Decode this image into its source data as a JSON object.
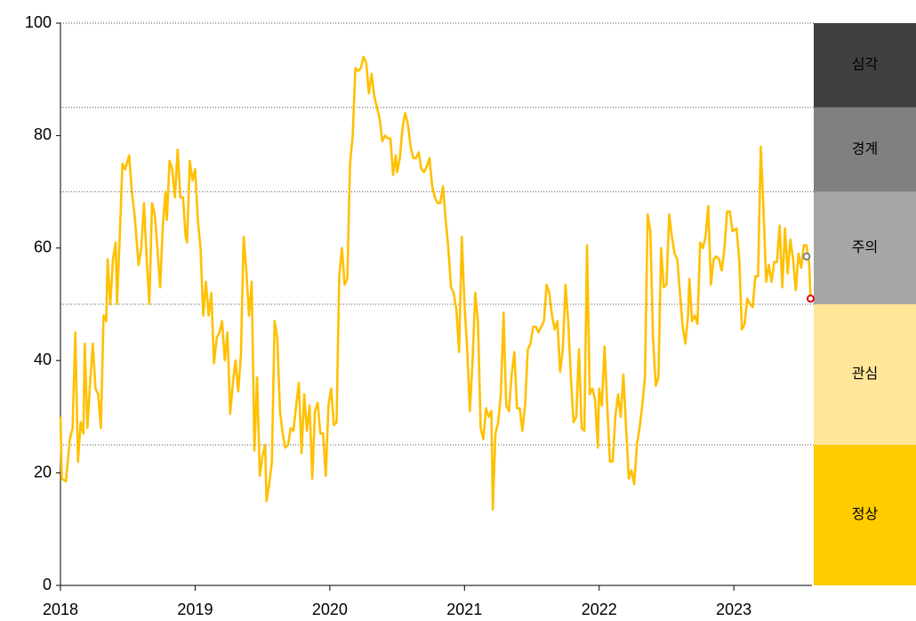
{
  "chart_data": {
    "type": "line",
    "x": [
      2018.0,
      2018.01,
      2018.04,
      2018.07,
      2018.09,
      2018.11,
      2018.13,
      2018.15,
      2018.17,
      2018.18,
      2018.2,
      2018.22,
      2018.24,
      2018.26,
      2018.28,
      2018.3,
      2018.32,
      2018.34,
      2018.35,
      2018.37,
      2018.39,
      2018.41,
      2018.42,
      2018.44,
      2018.46,
      2018.48,
      2018.51,
      2018.53,
      2018.55,
      2018.57,
      2018.58,
      2018.6,
      2018.62,
      2018.64,
      2018.66,
      2018.68,
      2018.7,
      2018.72,
      2018.74,
      2018.76,
      2018.78,
      2018.79,
      2018.81,
      2018.83,
      2018.85,
      2018.87,
      2018.89,
      2018.91,
      2018.93,
      2018.94,
      2018.96,
      2018.98,
      2019.0,
      2019.02,
      2019.04,
      2019.06,
      2019.08,
      2019.1,
      2019.12,
      2019.14,
      2019.16,
      2019.18,
      2019.2,
      2019.22,
      2019.24,
      2019.26,
      2019.28,
      2019.3,
      2019.32,
      2019.34,
      2019.36,
      2019.38,
      2019.4,
      2019.42,
      2019.44,
      2019.46,
      2019.48,
      2019.5,
      2019.52,
      2019.53,
      2019.55,
      2019.57,
      2019.59,
      2019.61,
      2019.63,
      2019.65,
      2019.67,
      2019.69,
      2019.71,
      2019.73,
      2019.75,
      2019.77,
      2019.79,
      2019.81,
      2019.83,
      2019.85,
      2019.87,
      2019.89,
      2019.91,
      2019.93,
      2019.95,
      2019.97,
      2019.99,
      2020.01,
      2020.03,
      2020.05,
      2020.07,
      2020.09,
      2020.11,
      2020.13,
      2020.15,
      2020.17,
      2020.19,
      2020.21,
      2020.23,
      2020.25,
      2020.27,
      2020.29,
      2020.31,
      2020.33,
      2020.35,
      2020.37,
      2020.39,
      2020.41,
      2020.43,
      2020.45,
      2020.47,
      2020.49,
      2020.5,
      2020.52,
      2020.54,
      2020.56,
      2020.58,
      2020.6,
      2020.62,
      2020.64,
      2020.66,
      2020.68,
      2020.7,
      2020.72,
      2020.74,
      2020.76,
      2020.78,
      2020.8,
      2020.82,
      2020.84,
      2020.86,
      2020.88,
      2020.9,
      2020.92,
      2020.94,
      2020.96,
      2020.98,
      2021.0,
      2021.02,
      2021.04,
      2021.06,
      2021.08,
      2021.1,
      2021.12,
      2021.14,
      2021.16,
      2021.18,
      2021.2,
      2021.21,
      2021.23,
      2021.25,
      2021.27,
      2021.29,
      2021.31,
      2021.33,
      2021.35,
      2021.37,
      2021.39,
      2021.41,
      2021.43,
      2021.45,
      2021.47,
      2021.49,
      2021.51,
      2021.53,
      2021.55,
      2021.57,
      2021.59,
      2021.61,
      2021.63,
      2021.65,
      2021.67,
      2021.69,
      2021.71,
      2021.73,
      2021.75,
      2021.77,
      2021.79,
      2021.81,
      2021.83,
      2021.85,
      2021.87,
      2021.89,
      2021.91,
      2021.93,
      2021.95,
      2021.97,
      2021.99,
      2022.0,
      2022.02,
      2022.04,
      2022.06,
      2022.08,
      2022.1,
      2022.12,
      2022.14,
      2022.16,
      2022.18,
      2022.2,
      2022.22,
      2022.24,
      2022.26,
      2022.28,
      2022.3,
      2022.32,
      2022.34,
      2022.36,
      2022.38,
      2022.4,
      2022.42,
      2022.44,
      2022.46,
      2022.48,
      2022.5,
      2022.52,
      2022.54,
      2022.56,
      2022.58,
      2022.6,
      2022.62,
      2022.64,
      2022.66,
      2022.67,
      2022.69,
      2022.71,
      2022.73,
      2022.75,
      2022.77,
      2022.79,
      2022.81,
      2022.83,
      2022.85,
      2022.87,
      2022.89,
      2022.91,
      2022.93,
      2022.95,
      2022.97,
      2022.99,
      2023.02,
      2023.04,
      2023.06,
      2023.08,
      2023.1,
      2023.12,
      2023.14,
      2023.16,
      2023.18,
      2023.2,
      2023.22,
      2023.24,
      2023.26,
      2023.28,
      2023.3,
      2023.32,
      2023.34,
      2023.36,
      2023.38,
      2023.4,
      2023.42,
      2023.44,
      2023.46,
      2023.48,
      2023.5,
      2023.52,
      2023.54,
      2023.56,
      2023.57
    ],
    "series": [
      {
        "color": "#ffc000",
        "values": [
          30,
          19,
          18.5,
          26,
          28,
          45,
          22,
          29,
          27,
          43,
          28,
          36,
          43,
          35,
          34,
          28,
          48,
          47,
          58,
          50,
          58,
          61,
          50,
          62,
          75,
          74,
          76.5,
          70,
          66,
          60,
          57,
          60,
          68,
          58,
          50,
          68,
          66,
          60,
          53,
          64,
          70,
          65,
          75.5,
          74,
          69,
          77.5,
          69,
          69,
          62,
          61,
          75.5,
          72,
          74,
          65,
          60,
          48,
          54,
          48,
          52,
          39.5,
          44,
          45,
          47,
          40,
          45,
          30.5,
          36,
          40,
          34.5,
          41,
          62,
          56,
          48,
          54,
          24,
          37,
          19.5,
          23,
          25,
          15,
          18,
          22,
          47,
          44,
          31,
          27,
          24.5,
          25,
          28,
          27.5,
          32,
          36,
          23.5,
          34,
          27.5,
          32,
          19,
          31,
          32.5,
          27,
          27,
          19.5,
          32,
          35,
          28.5,
          29,
          55,
          60,
          53.5,
          54.5,
          75,
          80,
          92,
          91.5,
          92,
          94,
          93,
          87.5,
          91,
          87,
          85,
          83,
          79,
          80,
          79.5,
          79.5,
          73,
          76.5,
          73.5,
          76,
          81.5,
          84,
          82,
          78,
          76,
          76,
          77,
          74,
          73.5,
          74.5,
          76,
          71,
          69,
          68,
          68,
          71,
          65,
          60,
          53,
          52,
          49,
          41.5,
          62,
          50,
          42,
          31,
          40,
          52,
          47,
          28,
          26,
          31.5,
          30,
          31,
          13.5,
          27,
          29,
          34,
          48.5,
          32,
          31,
          37.5,
          41.5,
          31.5,
          31.5,
          27.5,
          32,
          42,
          43,
          46,
          46,
          45,
          46,
          47,
          53.5,
          52,
          48,
          45.5,
          47,
          38,
          42,
          53.5,
          47,
          37,
          29,
          30,
          42,
          28,
          27.5,
          60.5,
          34,
          35,
          33,
          24.5,
          35,
          32,
          42.5,
          32,
          22,
          22,
          30,
          34,
          30,
          37.5,
          28,
          19,
          20.5,
          18,
          25,
          28,
          32,
          37,
          66,
          63,
          44,
          35.5,
          37,
          60,
          53,
          53.5,
          66,
          62,
          59,
          58,
          52,
          46,
          43,
          48,
          54.5,
          47,
          48,
          46.5,
          61,
          60,
          62,
          67.5,
          53.5,
          58,
          58.5,
          58,
          56,
          60,
          66.5,
          66.5,
          63,
          63.5,
          58,
          45.5,
          46.5,
          51,
          50,
          49.5,
          55,
          55,
          78,
          67,
          54,
          57,
          54,
          57.5,
          57.5,
          64,
          53,
          63.5,
          55.5,
          61.5,
          58,
          52.5,
          59,
          56.5,
          60.5,
          60.5,
          57,
          51
        ]
      }
    ],
    "markers": [
      {
        "x": 2023.54,
        "value": 58.5,
        "color": "#7f7f7f"
      },
      {
        "x": 2023.57,
        "value": 51,
        "color": "#e00000"
      }
    ],
    "zones": [
      {
        "label": "정상",
        "from": 0,
        "to": 25,
        "color": "#ffcc00",
        "text_color": "#000000"
      },
      {
        "label": "관심",
        "from": 25,
        "to": 50,
        "color": "#ffe699",
        "text_color": "#000000"
      },
      {
        "label": "주의",
        "from": 50,
        "to": 70,
        "color": "#a6a6a6",
        "text_color": "#000000"
      },
      {
        "label": "경계",
        "from": 70,
        "to": 85,
        "color": "#808080",
        "text_color": "#ffffff"
      },
      {
        "label": "심각",
        "from": 85,
        "to": 100,
        "color": "#404040",
        "text_color": "#ffffff"
      }
    ],
    "xlim": [
      2018,
      2023.58
    ],
    "xticks": [
      2018,
      2019,
      2020,
      2021,
      2022,
      2023
    ],
    "ylim": [
      0,
      100
    ],
    "yticks": [
      0,
      20,
      40,
      60,
      80,
      100
    ]
  }
}
